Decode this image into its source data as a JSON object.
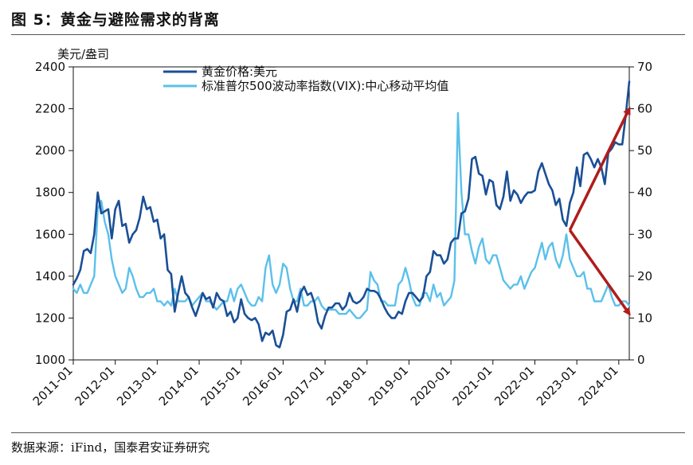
{
  "figure": {
    "title": "图 5：黄金与避险需求的背离",
    "source": "数据来源：iFind，国泰君安证券研究"
  },
  "colors": {
    "gold": "#1a4f96",
    "vix": "#5bc0ea",
    "arrow": "#b01c1c",
    "axis": "#111111"
  },
  "chart_data": {
    "type": "line",
    "title": "图 5：黄金与避险需求的背离",
    "y_left_label": "美元/盎司",
    "y_left_lim": [
      1000,
      2400
    ],
    "y_left_ticks": [
      "1000",
      "1200",
      "1400",
      "1600",
      "1800",
      "2000",
      "2200",
      "2400"
    ],
    "y_right_lim": [
      0,
      70
    ],
    "y_right_ticks": [
      "0",
      "10",
      "20",
      "30",
      "40",
      "50",
      "60",
      "70"
    ],
    "x_range": [
      "2011-01",
      "2024-04"
    ],
    "x_ticks": [
      "2011-01",
      "2012-01",
      "2013-01",
      "2014-01",
      "2015-01",
      "2016-01",
      "2017-01",
      "2018-01",
      "2019-01",
      "2020-01",
      "2021-01",
      "2022-01",
      "2023-01",
      "2024-01"
    ],
    "legend_position": "top",
    "grid": false,
    "series": [
      {
        "name": "黄金价格:美元",
        "axis": "left",
        "x": [
          "2011-01",
          "2011-02",
          "2011-03",
          "2011-04",
          "2011-05",
          "2011-06",
          "2011-07",
          "2011-08",
          "2011-09",
          "2011-10",
          "2011-11",
          "2011-12",
          "2012-01",
          "2012-02",
          "2012-03",
          "2012-04",
          "2012-05",
          "2012-06",
          "2012-07",
          "2012-08",
          "2012-09",
          "2012-10",
          "2012-11",
          "2012-12",
          "2013-01",
          "2013-02",
          "2013-03",
          "2013-04",
          "2013-05",
          "2013-06",
          "2013-07",
          "2013-08",
          "2013-09",
          "2013-10",
          "2013-11",
          "2013-12",
          "2014-01",
          "2014-02",
          "2014-03",
          "2014-04",
          "2014-05",
          "2014-06",
          "2014-07",
          "2014-08",
          "2014-09",
          "2014-10",
          "2014-11",
          "2014-12",
          "2015-01",
          "2015-02",
          "2015-03",
          "2015-04",
          "2015-05",
          "2015-06",
          "2015-07",
          "2015-08",
          "2015-09",
          "2015-10",
          "2015-11",
          "2015-12",
          "2016-01",
          "2016-02",
          "2016-03",
          "2016-04",
          "2016-05",
          "2016-06",
          "2016-07",
          "2016-08",
          "2016-09",
          "2016-10",
          "2016-11",
          "2016-12",
          "2017-01",
          "2017-02",
          "2017-03",
          "2017-04",
          "2017-05",
          "2017-06",
          "2017-07",
          "2017-08",
          "2017-09",
          "2017-10",
          "2017-11",
          "2017-12",
          "2018-01",
          "2018-02",
          "2018-03",
          "2018-04",
          "2018-05",
          "2018-06",
          "2018-07",
          "2018-08",
          "2018-09",
          "2018-10",
          "2018-11",
          "2018-12",
          "2019-01",
          "2019-02",
          "2019-03",
          "2019-04",
          "2019-05",
          "2019-06",
          "2019-07",
          "2019-08",
          "2019-09",
          "2019-10",
          "2019-11",
          "2019-12",
          "2020-01",
          "2020-02",
          "2020-03",
          "2020-04",
          "2020-05",
          "2020-06",
          "2020-07",
          "2020-08",
          "2020-09",
          "2020-10",
          "2020-11",
          "2020-12",
          "2021-01",
          "2021-02",
          "2021-03",
          "2021-04",
          "2021-05",
          "2021-06",
          "2021-07",
          "2021-08",
          "2021-09",
          "2021-10",
          "2021-11",
          "2021-12",
          "2022-01",
          "2022-02",
          "2022-03",
          "2022-04",
          "2022-05",
          "2022-06",
          "2022-07",
          "2022-08",
          "2022-09",
          "2022-10",
          "2022-11",
          "2022-12",
          "2023-01",
          "2023-02",
          "2023-03",
          "2023-04",
          "2023-05",
          "2023-06",
          "2023-07",
          "2023-08",
          "2023-09",
          "2023-10",
          "2023-11",
          "2023-12",
          "2024-01",
          "2024-02",
          "2024-03",
          "2024-04"
        ],
        "values": [
          1360,
          1390,
          1430,
          1520,
          1530,
          1510,
          1600,
          1800,
          1700,
          1710,
          1720,
          1580,
          1720,
          1760,
          1640,
          1650,
          1560,
          1600,
          1620,
          1680,
          1780,
          1720,
          1730,
          1660,
          1670,
          1580,
          1600,
          1430,
          1410,
          1230,
          1320,
          1400,
          1320,
          1300,
          1250,
          1210,
          1260,
          1320,
          1290,
          1300,
          1250,
          1320,
          1290,
          1280,
          1210,
          1230,
          1180,
          1200,
          1290,
          1220,
          1200,
          1190,
          1200,
          1170,
          1090,
          1130,
          1120,
          1140,
          1070,
          1060,
          1120,
          1230,
          1240,
          1290,
          1230,
          1320,
          1350,
          1310,
          1320,
          1270,
          1180,
          1150,
          1210,
          1250,
          1250,
          1270,
          1270,
          1240,
          1260,
          1320,
          1280,
          1270,
          1280,
          1300,
          1340,
          1330,
          1330,
          1320,
          1290,
          1250,
          1220,
          1200,
          1200,
          1230,
          1220,
          1280,
          1320,
          1320,
          1300,
          1280,
          1300,
          1400,
          1420,
          1520,
          1500,
          1500,
          1460,
          1480,
          1560,
          1580,
          1580,
          1700,
          1710,
          1770,
          1960,
          1970,
          1890,
          1880,
          1790,
          1860,
          1850,
          1740,
          1720,
          1780,
          1900,
          1760,
          1810,
          1790,
          1750,
          1780,
          1800,
          1800,
          1810,
          1900,
          1940,
          1890,
          1840,
          1810,
          1740,
          1770,
          1670,
          1640,
          1750,
          1800,
          1920,
          1830,
          1980,
          1990,
          1960,
          1920,
          1960,
          1920,
          1840,
          1990,
          2010,
          2040,
          2030,
          2030,
          2170,
          2330
        ]
      },
      {
        "name": "标准普尔500波动率指数(VIX):中心移动平均值",
        "axis": "right",
        "x": [
          "2011-01",
          "2011-02",
          "2011-03",
          "2011-04",
          "2011-05",
          "2011-06",
          "2011-07",
          "2011-08",
          "2011-09",
          "2011-10",
          "2011-11",
          "2011-12",
          "2012-01",
          "2012-02",
          "2012-03",
          "2012-04",
          "2012-05",
          "2012-06",
          "2012-07",
          "2012-08",
          "2012-09",
          "2012-10",
          "2012-11",
          "2012-12",
          "2013-01",
          "2013-02",
          "2013-03",
          "2013-04",
          "2013-05",
          "2013-06",
          "2013-07",
          "2013-08",
          "2013-09",
          "2013-10",
          "2013-11",
          "2013-12",
          "2014-01",
          "2014-02",
          "2014-03",
          "2014-04",
          "2014-05",
          "2014-06",
          "2014-07",
          "2014-08",
          "2014-09",
          "2014-10",
          "2014-11",
          "2014-12",
          "2015-01",
          "2015-02",
          "2015-03",
          "2015-04",
          "2015-05",
          "2015-06",
          "2015-07",
          "2015-08",
          "2015-09",
          "2015-10",
          "2015-11",
          "2015-12",
          "2016-01",
          "2016-02",
          "2016-03",
          "2016-04",
          "2016-05",
          "2016-06",
          "2016-07",
          "2016-08",
          "2016-09",
          "2016-10",
          "2016-11",
          "2016-12",
          "2017-01",
          "2017-02",
          "2017-03",
          "2017-04",
          "2017-05",
          "2017-06",
          "2017-07",
          "2017-08",
          "2017-09",
          "2017-10",
          "2017-11",
          "2017-12",
          "2018-01",
          "2018-02",
          "2018-03",
          "2018-04",
          "2018-05",
          "2018-06",
          "2018-07",
          "2018-08",
          "2018-09",
          "2018-10",
          "2018-11",
          "2018-12",
          "2019-01",
          "2019-02",
          "2019-03",
          "2019-04",
          "2019-05",
          "2019-06",
          "2019-07",
          "2019-08",
          "2019-09",
          "2019-10",
          "2019-11",
          "2019-12",
          "2020-01",
          "2020-02",
          "2020-03",
          "2020-04",
          "2020-05",
          "2020-06",
          "2020-07",
          "2020-08",
          "2020-09",
          "2020-10",
          "2020-11",
          "2020-12",
          "2021-01",
          "2021-02",
          "2021-03",
          "2021-04",
          "2021-05",
          "2021-06",
          "2021-07",
          "2021-08",
          "2021-09",
          "2021-10",
          "2021-11",
          "2021-12",
          "2022-01",
          "2022-02",
          "2022-03",
          "2022-04",
          "2022-05",
          "2022-06",
          "2022-07",
          "2022-08",
          "2022-09",
          "2022-10",
          "2022-11",
          "2022-12",
          "2023-01",
          "2023-02",
          "2023-03",
          "2023-04",
          "2023-05",
          "2023-06",
          "2023-07",
          "2023-08",
          "2023-09",
          "2023-10",
          "2023-11",
          "2023-12",
          "2024-01",
          "2024-02",
          "2024-03",
          "2024-04"
        ],
        "values": [
          17,
          16,
          18,
          16,
          16,
          18,
          20,
          36,
          38,
          33,
          30,
          24,
          20,
          18,
          16,
          17,
          22,
          20,
          17,
          15,
          15,
          16,
          16,
          17,
          14,
          14,
          13,
          14,
          13,
          17,
          14,
          14,
          14,
          15,
          13,
          14,
          15,
          16,
          14,
          14,
          13,
          12,
          13,
          14,
          14,
          17,
          14,
          17,
          18,
          16,
          14,
          13,
          13,
          15,
          14,
          22,
          25,
          18,
          16,
          18,
          23,
          22,
          17,
          14,
          14,
          17,
          13,
          13,
          14,
          14,
          15,
          13,
          12,
          12,
          12,
          12,
          11,
          11,
          11,
          12,
          11,
          10,
          10,
          11,
          12,
          21,
          19,
          18,
          14,
          14,
          13,
          13,
          13,
          18,
          19,
          22,
          19,
          15,
          13,
          13,
          16,
          16,
          14,
          18,
          15,
          16,
          13,
          14,
          15,
          19,
          59,
          40,
          30,
          30,
          26,
          23,
          27,
          29,
          24,
          23,
          25,
          25,
          22,
          19,
          18,
          17,
          18,
          18,
          20,
          17,
          19,
          21,
          22,
          25,
          28,
          24,
          27,
          28,
          24,
          22,
          25,
          30,
          24,
          22,
          20,
          20,
          21,
          17,
          17,
          14,
          14,
          14,
          16,
          18,
          15,
          13,
          13,
          14,
          14,
          13
        ]
      }
    ],
    "annotations": [
      {
        "type": "arrow",
        "from": {
          "x": "2022-11",
          "y_left": 1620
        },
        "to": {
          "x": "2024-04",
          "y_left": 2200
        }
      },
      {
        "type": "arrow",
        "from": {
          "x": "2022-11",
          "y_left": 1620
        },
        "to": {
          "x": "2024-04",
          "y_left": 1220
        }
      }
    ]
  }
}
